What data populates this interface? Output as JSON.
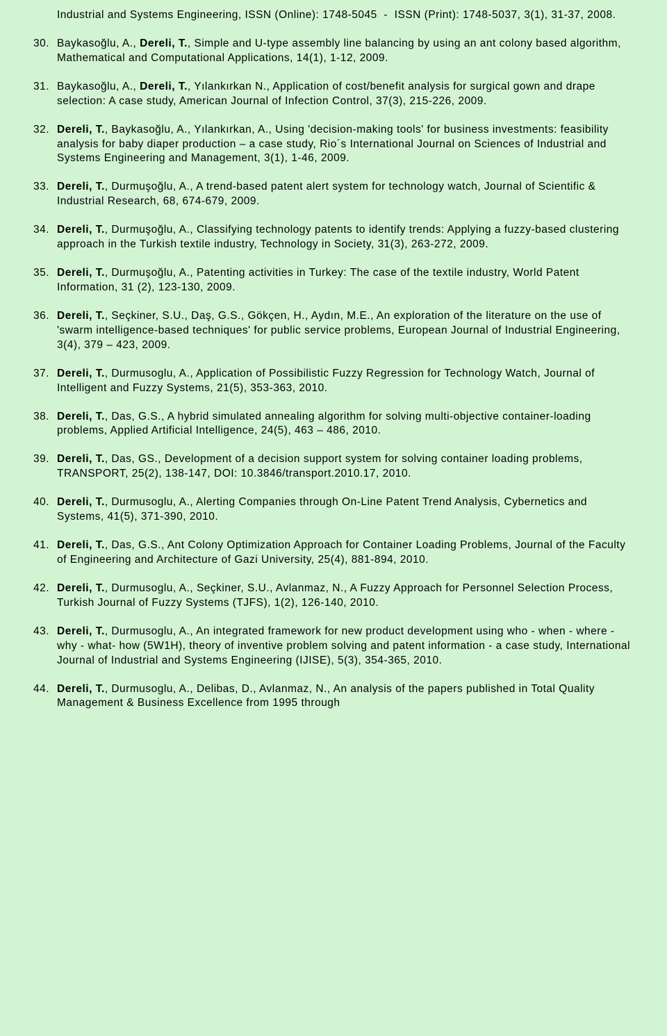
{
  "continuation": {
    "html": "Industrial and Systems Engineering, ISSN (Online): 1748-5045&nbsp;&nbsp;-&nbsp;&nbsp;ISSN (Print): 1748-5037, 3(1), 31-37, 2008."
  },
  "refs": [
    {
      "n": "30.",
      "html": "Baykasoğlu, A., <span class='bold'>Dereli, T.</span>, Simple and U-type assembly line balancing by using an ant colony based algorithm, Mathematical and Computational Applications, 14(1), 1-12, 2009."
    },
    {
      "n": "31.",
      "html": "Baykasoğlu, A., <span class='bold'>Dereli, T.</span>, Yılankırkan N., Application of cost/benefit analysis for surgical gown and drape selection: A case study, American Journal of Infection Control, 37(3), 215-226, 2009."
    },
    {
      "n": "32.",
      "html": "<span class='bold'>Dereli, T.</span>, Baykasoğlu, A., Yılankırkan, A., Using 'decision-making tools' for business investments: feasibility analysis for baby diaper production – a case study, Rio´s International Journal on Sciences of Industrial and Systems Engineering and Management, 3(1), 1-46, 2009."
    },
    {
      "n": "33.",
      "html": "<span class='bold'>Dereli, T.</span>, Durmuşoğlu, A., A trend-based patent alert system for technology watch, Journal of Scientific &amp; Industrial Research, 68, 674-679, 2009."
    },
    {
      "n": "34.",
      "html": "<span class='bold'>Dereli, T.</span>, Durmuşoğlu, A., Classifying technology patents to identify trends: Applying a fuzzy-based clustering approach in the Turkish textile industry, Technology in Society, 31(3), 263-272, 2009."
    },
    {
      "n": "35.",
      "html": "<span class='bold'>Dereli, T.</span>, Durmuşoğlu, A., Patenting activities in Turkey: The case of the textile industry, World Patent Information, 31 (2), 123-130, 2009."
    },
    {
      "n": "36.",
      "html": "<span class='bold'>Dereli, T.</span>, Seçkiner, S.U., Daş, G.S., Gökçen, H., Aydın, M.E., An exploration of the literature on the use of 'swarm intelligence-based techniques' for public service problems, European Journal of Industrial Engineering, 3(4), 379 – 423, 2009."
    },
    {
      "n": "37.",
      "html": "<span class='bold'>Dereli, T.</span>, Durmusoglu, A., Application of Possibilistic Fuzzy Regression for Technology Watch, Journal of Intelligent and Fuzzy Systems, 21(5), 353-363, 2010."
    },
    {
      "n": "38.",
      "html": "<span class='bold'>Dereli, T.</span>, Das, G.S., A hybrid simulated annealing algorithm for solving multi-objective container-loading problems, Applied Artificial Intelligence, 24(5), 463 – 486, 2010."
    },
    {
      "n": "39.",
      "html": "<span class='bold'>Dereli, T.</span>, Das, GS., Development of a decision support system for solving container loading problems, TRANSPORT, 25(2), 138-147, DOI: 10.3846/transport.2010.17, 2010."
    },
    {
      "n": "40.",
      "html": "<span class='bold'>Dereli, T.</span>, Durmusoglu, A., Alerting Companies through On-Line Patent Trend Analysis, Cybernetics and Systems, 41(5), 371-390, 2010."
    },
    {
      "n": "41.",
      "html": "<span class='bold'>Dereli, T.</span>, Das, G.S., Ant Colony Optimization Approach for Container Loading Problems, Journal of the Faculty of Engineering and Architecture of Gazi University, 25(4), 881-894, 2010."
    },
    {
      "n": "42.",
      "html": "<span class='bold'>Dereli, T.</span>, Durmusoglu, A., Seçkiner, S.U., Avlanmaz, N., A Fuzzy Approach for Personnel Selection Process, Turkish Journal of Fuzzy Systems (TJFS), 1(2), 126-140, 2010."
    },
    {
      "n": "43.",
      "html": "<span class='bold'>Dereli, T.</span>, Durmusoglu, A., An integrated framework for new product development using who - when - where - why - what- how (5W1H), theory of inventive problem solving and patent information - a case study, International Journal of Industrial and Systems Engineering (IJISE), 5(3), 354-365, 2010."
    },
    {
      "n": "44.",
      "html": "<span class='bold'>Dereli, T.</span>, Durmusoglu, A., Delibas, D., Avlanmaz, N., An analysis of the papers published in Total Quality Management &amp; Business Excellence from 1995 through"
    }
  ]
}
